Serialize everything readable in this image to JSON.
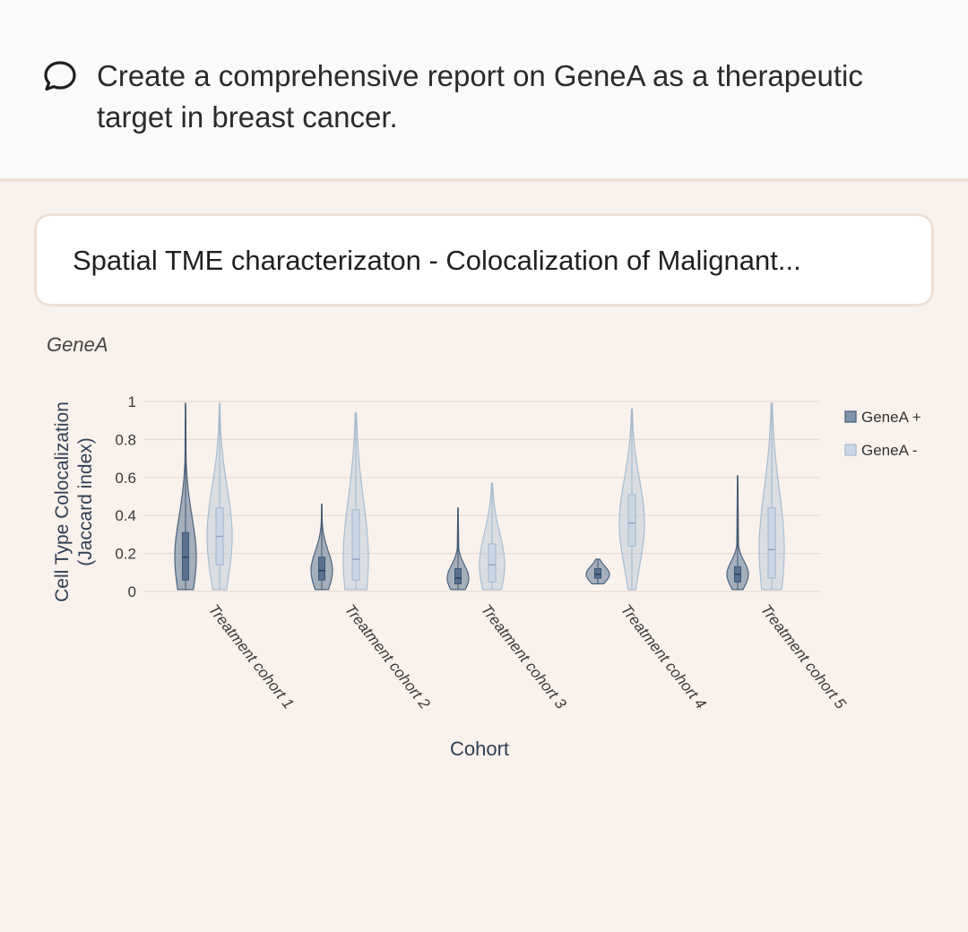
{
  "prompt": {
    "icon": "speech-bubble-icon",
    "text": "Create a comprehensive report on GeneA as a therapeutic target in breast cancer."
  },
  "card": {
    "title": "Spatial TME characterizaton - Colocalization of Malignant..."
  },
  "chart_data": {
    "type": "violin",
    "title": "GeneA",
    "xlabel": "Cohort",
    "ylabel": "Cell Type Colocalization (Jaccard index)",
    "ylim": [
      0,
      1
    ],
    "yticks": [
      "0",
      "0.2",
      "0.4",
      "0.6",
      "0.8",
      "1"
    ],
    "grid": true,
    "legend_position": "top-right",
    "categories": [
      "Treatment cohort 1",
      "Treatment cohort 2",
      "Treatment cohort 3",
      "Treatment cohort 4",
      "Treatment cohort 5"
    ],
    "series": [
      {
        "name": "GeneA +",
        "color": "#5f7894",
        "distributions": [
          {
            "min": 0.01,
            "q1": 0.06,
            "median": 0.18,
            "q3": 0.31,
            "max": 0.99
          },
          {
            "min": 0.01,
            "q1": 0.06,
            "median": 0.11,
            "q3": 0.18,
            "max": 0.46
          },
          {
            "min": 0.01,
            "q1": 0.04,
            "median": 0.07,
            "q3": 0.12,
            "max": 0.44
          },
          {
            "min": 0.04,
            "q1": 0.07,
            "median": 0.09,
            "q3": 0.12,
            "max": 0.17
          },
          {
            "min": 0.01,
            "q1": 0.05,
            "median": 0.09,
            "q3": 0.13,
            "max": 0.61
          }
        ]
      },
      {
        "name": "GeneA -",
        "color": "#b4c7d9",
        "distributions": [
          {
            "min": 0.01,
            "q1": 0.14,
            "median": 0.29,
            "q3": 0.44,
            "max": 0.99
          },
          {
            "min": 0.01,
            "q1": 0.06,
            "median": 0.17,
            "q3": 0.43,
            "max": 0.94
          },
          {
            "min": 0.01,
            "q1": 0.05,
            "median": 0.14,
            "q3": 0.25,
            "max": 0.57
          },
          {
            "min": 0.01,
            "q1": 0.24,
            "median": 0.36,
            "q3": 0.51,
            "max": 0.96
          },
          {
            "min": 0.01,
            "q1": 0.07,
            "median": 0.22,
            "q3": 0.44,
            "max": 0.99
          }
        ]
      }
    ]
  }
}
